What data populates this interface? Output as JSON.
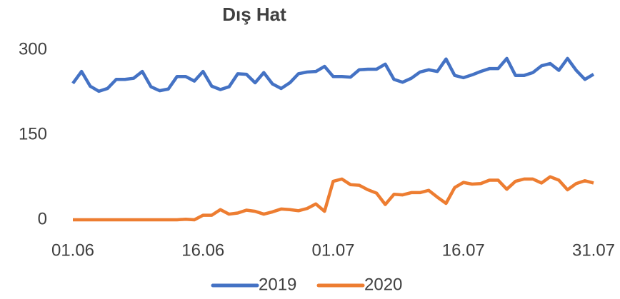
{
  "chart_data": {
    "type": "line",
    "title": "Dış Hat",
    "categories": [
      "01.06",
      null,
      null,
      null,
      null,
      null,
      null,
      null,
      null,
      null,
      null,
      null,
      null,
      null,
      null,
      "16.06",
      null,
      null,
      null,
      null,
      null,
      null,
      null,
      null,
      null,
      null,
      null,
      null,
      null,
      null,
      "01.07",
      null,
      null,
      null,
      null,
      null,
      null,
      null,
      null,
      null,
      null,
      null,
      null,
      null,
      null,
      "16.07",
      null,
      null,
      null,
      null,
      null,
      null,
      null,
      null,
      null,
      null,
      null,
      null,
      null,
      null,
      "31.07"
    ],
    "series": [
      {
        "name": "2019",
        "color": "#4472c4",
        "values": [
          241,
          262,
          236,
          227,
          232,
          248,
          248,
          250,
          262,
          235,
          228,
          231,
          253,
          253,
          245,
          262,
          236,
          230,
          235,
          258,
          257,
          242,
          260,
          240,
          232,
          242,
          258,
          261,
          262,
          271,
          253,
          253,
          252,
          265,
          266,
          266,
          275,
          248,
          243,
          250,
          261,
          265,
          262,
          284,
          255,
          251,
          256,
          262,
          267,
          267,
          285,
          255,
          255,
          260,
          272,
          276,
          264,
          285,
          264,
          248,
          257
        ]
      },
      {
        "name": "2020",
        "color": "#ed7d31",
        "values": [
          0,
          0,
          0,
          0,
          0,
          0,
          0,
          0,
          0,
          0,
          0,
          0,
          0,
          1,
          0,
          8,
          8,
          18,
          10,
          12,
          17,
          15,
          10,
          14,
          19,
          18,
          16,
          20,
          28,
          15,
          68,
          72,
          62,
          61,
          53,
          47,
          27,
          45,
          44,
          48,
          48,
          52,
          40,
          29,
          57,
          66,
          63,
          64,
          70,
          70,
          54,
          68,
          72,
          72,
          65,
          76,
          70,
          53,
          64,
          69,
          65
        ]
      }
    ],
    "ylim": [
      0,
      300
    ],
    "yticks": [
      0,
      150,
      300
    ],
    "grid": false,
    "legend": "bottom"
  }
}
